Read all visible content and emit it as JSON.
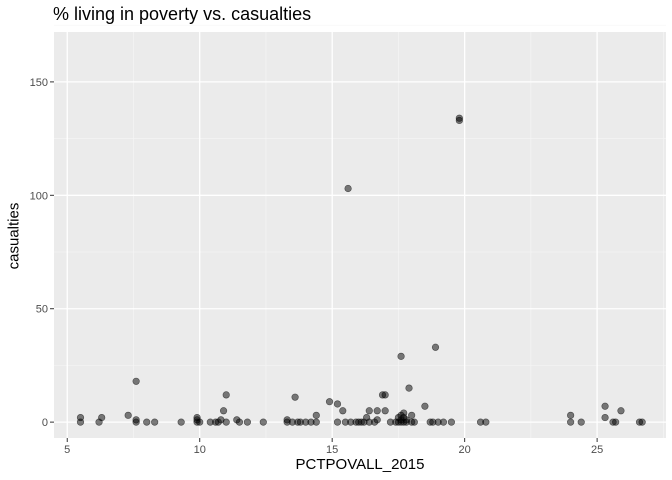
{
  "chart_data": {
    "type": "scatter",
    "title": "% living in poverty vs. casualties",
    "xlabel": "PCTPOVALL_2015",
    "ylabel": "casualties",
    "xlim": [
      4.5,
      27.6
    ],
    "ylim": [
      -7,
      172
    ],
    "x_ticks": [
      5,
      10,
      15,
      20,
      25
    ],
    "x_tick_labels": [
      "5",
      "10",
      "15",
      "20",
      "25"
    ],
    "y_ticks": [
      0,
      50,
      100,
      150
    ],
    "y_tick_labels": [
      "0",
      "50",
      "100",
      "150"
    ],
    "grid": true,
    "legend": "none",
    "point_color": "#000000",
    "panel_color": "#ebebeb",
    "points": [
      [
        5.5,
        0
      ],
      [
        5.5,
        2
      ],
      [
        6.2,
        0
      ],
      [
        6.3,
        2
      ],
      [
        7.3,
        3
      ],
      [
        7.6,
        0
      ],
      [
        7.6,
        1
      ],
      [
        7.6,
        18
      ],
      [
        8.0,
        0
      ],
      [
        8.3,
        0
      ],
      [
        9.3,
        0
      ],
      [
        9.9,
        0
      ],
      [
        9.9,
        1
      ],
      [
        9.9,
        2
      ],
      [
        10.0,
        0
      ],
      [
        10.4,
        0
      ],
      [
        10.6,
        0
      ],
      [
        10.7,
        0
      ],
      [
        10.8,
        1
      ],
      [
        10.9,
        5
      ],
      [
        11.0,
        12
      ],
      [
        11.0,
        0
      ],
      [
        11.4,
        1
      ],
      [
        11.5,
        0
      ],
      [
        11.8,
        0
      ],
      [
        12.4,
        0
      ],
      [
        13.3,
        0
      ],
      [
        13.3,
        1
      ],
      [
        13.5,
        0
      ],
      [
        13.6,
        11
      ],
      [
        13.7,
        0
      ],
      [
        13.8,
        0
      ],
      [
        14.0,
        0
      ],
      [
        14.2,
        0
      ],
      [
        14.4,
        0
      ],
      [
        14.4,
        3
      ],
      [
        14.9,
        9
      ],
      [
        15.2,
        0
      ],
      [
        15.2,
        8
      ],
      [
        15.4,
        5
      ],
      [
        15.5,
        0
      ],
      [
        15.6,
        103
      ],
      [
        15.7,
        0
      ],
      [
        15.9,
        0
      ],
      [
        16.0,
        0
      ],
      [
        16.1,
        0
      ],
      [
        16.2,
        0
      ],
      [
        16.3,
        2
      ],
      [
        16.4,
        0
      ],
      [
        16.4,
        5
      ],
      [
        16.6,
        0
      ],
      [
        16.7,
        1
      ],
      [
        16.7,
        5
      ],
      [
        16.9,
        12
      ],
      [
        17.0,
        12
      ],
      [
        17.0,
        5
      ],
      [
        17.2,
        0
      ],
      [
        17.4,
        0
      ],
      [
        17.5,
        0
      ],
      [
        17.5,
        2
      ],
      [
        17.6,
        0
      ],
      [
        17.6,
        1
      ],
      [
        17.6,
        3
      ],
      [
        17.6,
        29
      ],
      [
        17.7,
        0
      ],
      [
        17.7,
        2
      ],
      [
        17.7,
        4
      ],
      [
        17.8,
        0
      ],
      [
        17.8,
        1
      ],
      [
        17.9,
        15
      ],
      [
        18.0,
        0
      ],
      [
        18.0,
        3
      ],
      [
        18.1,
        0
      ],
      [
        18.5,
        7
      ],
      [
        18.7,
        0
      ],
      [
        18.8,
        0
      ],
      [
        18.9,
        33
      ],
      [
        19.0,
        0
      ],
      [
        19.2,
        0
      ],
      [
        19.5,
        0
      ],
      [
        19.8,
        133
      ],
      [
        19.8,
        134
      ],
      [
        20.6,
        0
      ],
      [
        20.8,
        0
      ],
      [
        24.0,
        0
      ],
      [
        24.0,
        3
      ],
      [
        24.4,
        0
      ],
      [
        25.3,
        7
      ],
      [
        25.3,
        2
      ],
      [
        25.6,
        0
      ],
      [
        25.7,
        0
      ],
      [
        25.9,
        5
      ],
      [
        26.6,
        0
      ],
      [
        26.7,
        0
      ]
    ]
  }
}
